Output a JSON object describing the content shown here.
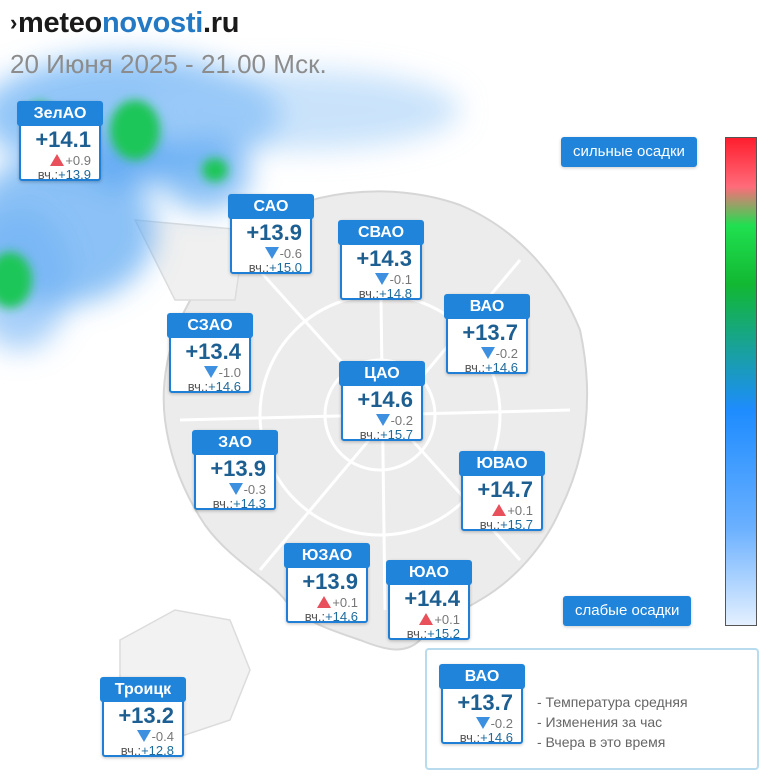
{
  "header": {
    "logo_mark": "›",
    "logo_part1": "meteo",
    "logo_part2": "novosti",
    "logo_part3": ".ru",
    "date": "20 Июня 2025 - 21.00 Мск."
  },
  "colors": {
    "accent": "#1f84da",
    "temp_text": "#1e5f92",
    "rise": "#e8505b",
    "fall": "#3d8fe0"
  },
  "yesterday_label": "вч.:",
  "districts": [
    {
      "name": "ЗелАО",
      "temp": "+14.1",
      "trend": "up",
      "change": "+0.9",
      "yesterday": "+13.9"
    },
    {
      "name": "САО",
      "temp": "+13.9",
      "trend": "down",
      "change": "-0.6",
      "yesterday": "+15.0"
    },
    {
      "name": "СВАО",
      "temp": "+14.3",
      "trend": "down",
      "change": "-0.1",
      "yesterday": "+14.8"
    },
    {
      "name": "ВАО",
      "temp": "+13.7",
      "trend": "down",
      "change": "-0.2",
      "yesterday": "+14.6"
    },
    {
      "name": "СЗАО",
      "temp": "+13.4",
      "trend": "down",
      "change": "-1.0",
      "yesterday": "+14.6"
    },
    {
      "name": "ЦАО",
      "temp": "+14.6",
      "trend": "down",
      "change": "-0.2",
      "yesterday": "+15.7"
    },
    {
      "name": "ЗАО",
      "temp": "+13.9",
      "trend": "down",
      "change": "-0.3",
      "yesterday": "+14.3"
    },
    {
      "name": "ЮВАО",
      "temp": "+14.7",
      "trend": "up",
      "change": "+0.1",
      "yesterday": "+15.7"
    },
    {
      "name": "ЮЗАО",
      "temp": "+13.9",
      "trend": "up",
      "change": "+0.1",
      "yesterday": "+14.6"
    },
    {
      "name": "ЮАО",
      "temp": "+14.4",
      "trend": "up",
      "change": "+0.1",
      "yesterday": "+15.2"
    },
    {
      "name": "Троицк",
      "temp": "+13.2",
      "trend": "down",
      "change": "-0.4",
      "yesterday": "+12.8"
    }
  ],
  "scale": {
    "top_label": "сильные осадки",
    "bottom_label": "слабые осадки"
  },
  "legend": {
    "example": {
      "name": "ВАО",
      "temp": "+13.7",
      "trend": "down",
      "change": "-0.2",
      "yesterday": "+14.6"
    },
    "line1": "- Температура средняя",
    "line2": "- Изменения за час",
    "line3": "- Вчера в это время"
  }
}
